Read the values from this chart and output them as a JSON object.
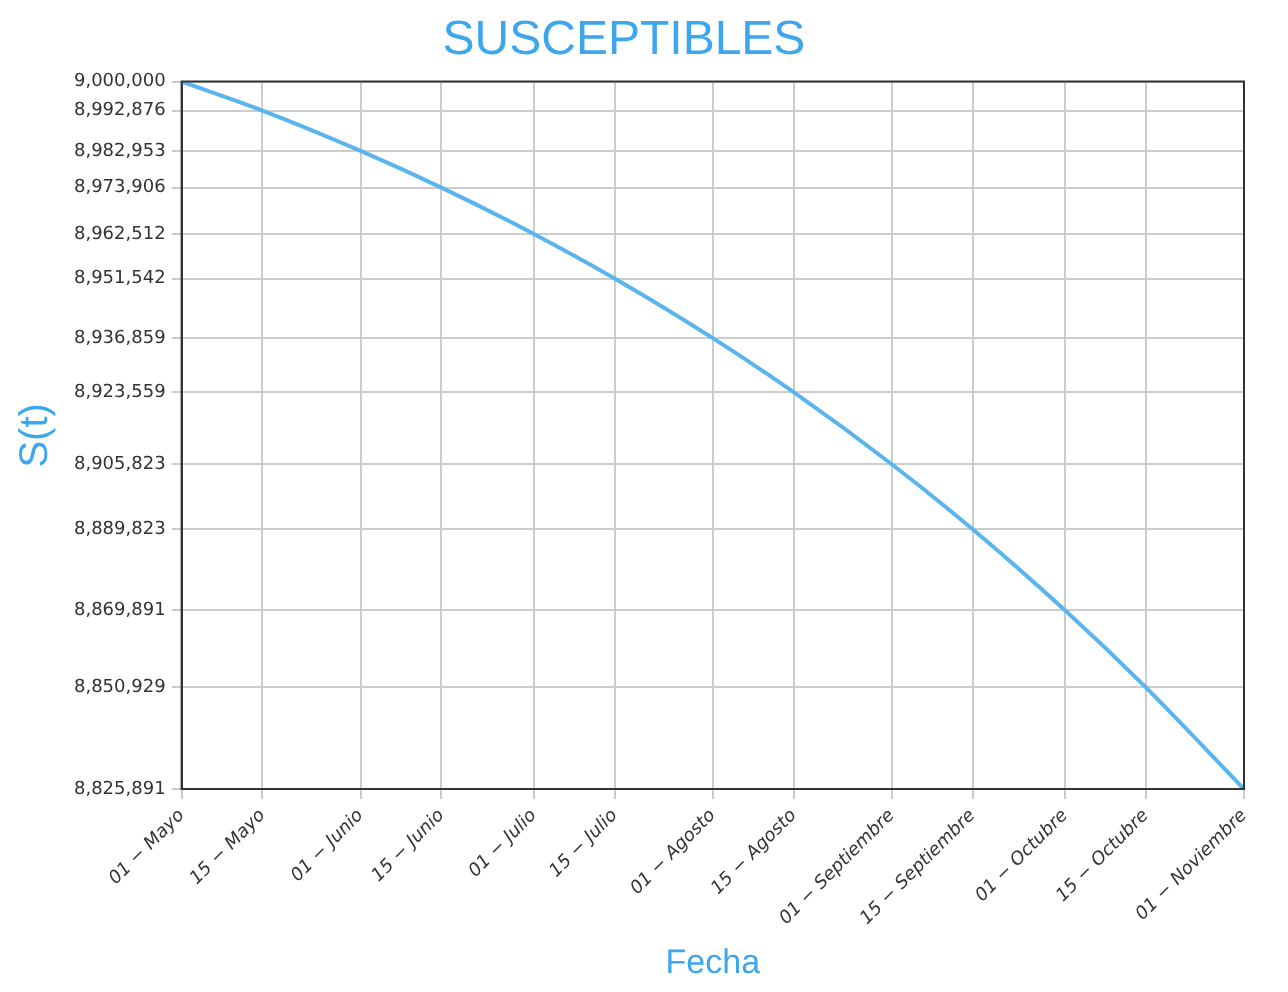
{
  "chart_data": {
    "type": "line",
    "title": "SUSCEPTIBLES",
    "xlabel": "Fecha",
    "ylabel": "S(t)",
    "x": [
      "--05-01",
      "--05-15",
      "--06-01",
      "--06-15",
      "--07-01",
      "--07-15",
      "--08-01",
      "--08-15",
      "--09-01",
      "--09-15",
      "--10-01",
      "--10-15",
      "--11-01"
    ],
    "series": [
      {
        "color": "#5ab4ee",
        "values": [
          9000000,
          8992876,
          8982953,
          8973906,
          8962512,
          8951542,
          8936859,
          8923559,
          8905823,
          8889823,
          8869891,
          8850929,
          8825891
        ]
      }
    ],
    "xlim": [
      "--05-01",
      "--11-01"
    ],
    "xticks": [
      {
        "value": "--05-01",
        "label": "01 − Mayo"
      },
      {
        "value": "--05-15",
        "label": "15 − Mayo"
      },
      {
        "value": "--06-01",
        "label": "01 − Junio"
      },
      {
        "value": "--06-15",
        "label": "15 − Junio"
      },
      {
        "value": "--07-01",
        "label": "01 − Julio"
      },
      {
        "value": "--07-15",
        "label": "15 − Julio"
      },
      {
        "value": "--08-01",
        "label": "01 − Agosto"
      },
      {
        "value": "--08-15",
        "label": "15 − Agosto"
      },
      {
        "value": "--09-01",
        "label": "01 − Septiembre"
      },
      {
        "value": "--09-15",
        "label": "15 − Septiembre"
      },
      {
        "value": "--10-01",
        "label": "01 − Octubre"
      },
      {
        "value": "--10-15",
        "label": "15 − Octubre"
      },
      {
        "value": "--11-01",
        "label": "01 − Noviembre"
      }
    ],
    "ylim": [
      8825891,
      9000000
    ],
    "yticks": [
      {
        "value": 9000000,
        "label": "9,000,000"
      },
      {
        "value": 8992876,
        "label": "8,992,876"
      },
      {
        "value": 8982953,
        "label": "8,982,953"
      },
      {
        "value": 8973906,
        "label": "8,973,906"
      },
      {
        "value": 8962512,
        "label": "8,962,512"
      },
      {
        "value": 8951542,
        "label": "8,951,542"
      },
      {
        "value": 8936859,
        "label": "8,936,859"
      },
      {
        "value": 8923559,
        "label": "8,923,559"
      },
      {
        "value": 8905823,
        "label": "8,905,823"
      },
      {
        "value": 8889823,
        "label": "8,889,823"
      },
      {
        "value": 8869891,
        "label": "8,869,891"
      },
      {
        "value": 8850929,
        "label": "8,850,929"
      },
      {
        "value": 8825891,
        "label": "8,825,891"
      }
    ],
    "grid": true,
    "marker": "none",
    "line_style": "solid"
  }
}
